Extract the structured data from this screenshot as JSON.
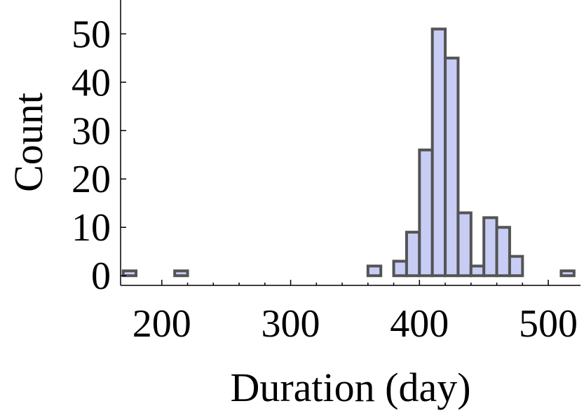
{
  "chart_data": {
    "type": "bar",
    "title": "",
    "xlabel": "Duration (day)",
    "ylabel": "Count",
    "xlim": [
      168,
      525
    ],
    "ylim": [
      -2,
      57
    ],
    "x_ticks": [
      200,
      300,
      400,
      500
    ],
    "y_ticks": [
      0,
      10,
      20,
      30,
      40,
      50
    ],
    "x_tick_labels": [
      "200",
      "300",
      "400",
      "500"
    ],
    "y_tick_labels": [
      "0",
      "10",
      "20",
      "30",
      "40",
      "50"
    ],
    "bin_width": 10,
    "bins": [
      {
        "x0": 170,
        "x1": 180,
        "count": 1
      },
      {
        "x0": 210,
        "x1": 220,
        "count": 1
      },
      {
        "x0": 360,
        "x1": 370,
        "count": 2
      },
      {
        "x0": 380,
        "x1": 390,
        "count": 3
      },
      {
        "x0": 390,
        "x1": 400,
        "count": 9
      },
      {
        "x0": 400,
        "x1": 410,
        "count": 26
      },
      {
        "x0": 410,
        "x1": 420,
        "count": 51
      },
      {
        "x0": 420,
        "x1": 430,
        "count": 45
      },
      {
        "x0": 430,
        "x1": 440,
        "count": 13
      },
      {
        "x0": 440,
        "x1": 450,
        "count": 2
      },
      {
        "x0": 450,
        "x1": 460,
        "count": 12
      },
      {
        "x0": 460,
        "x1": 470,
        "count": 10
      },
      {
        "x0": 470,
        "x1": 480,
        "count": 4
      },
      {
        "x0": 510,
        "x1": 520,
        "count": 1
      }
    ],
    "grid": false,
    "legend": "none",
    "colors": {
      "fill": "#c8cdf5",
      "stroke": "#545454"
    }
  }
}
